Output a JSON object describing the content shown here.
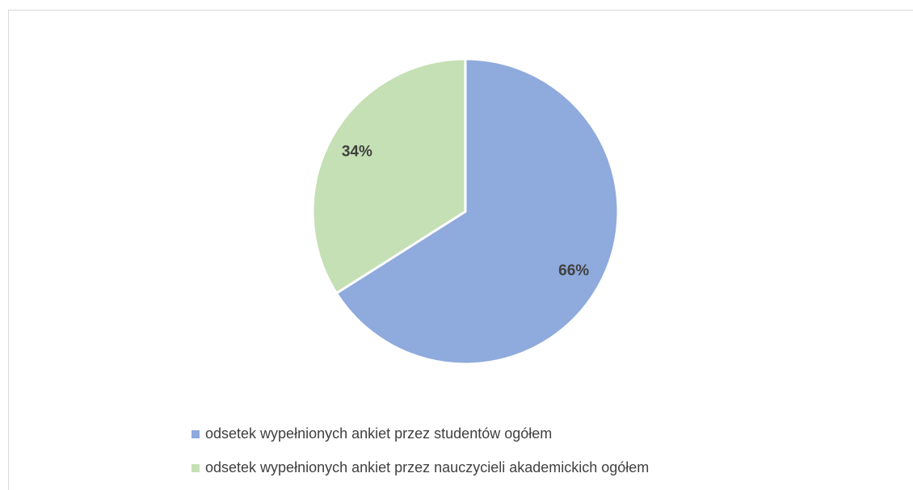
{
  "chart_data": {
    "type": "pie",
    "categories": [
      "odsetek wypełnionych ankiet przez studentów ogółem",
      "odsetek wypełnionych ankiet przez nauczycieli akademickich ogółem"
    ],
    "values": [
      66,
      34
    ],
    "value_labels": [
      "66%",
      "34%"
    ],
    "colors": [
      "#8faadc",
      "#c5e0b4"
    ],
    "legend": "bottom"
  }
}
